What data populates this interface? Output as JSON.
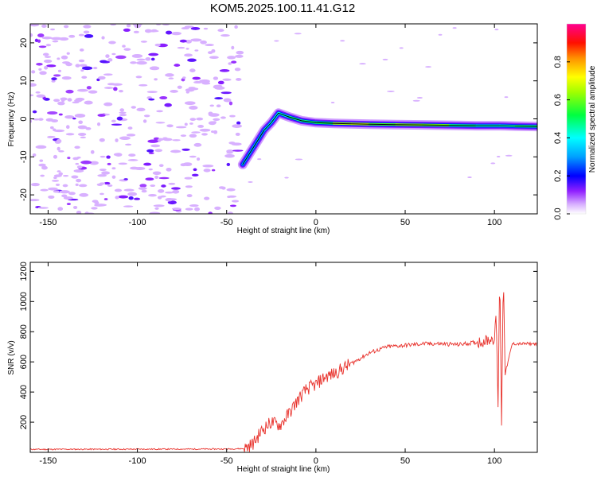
{
  "title": "KOM5.2025.100.11.41.G12",
  "chart_data": [
    {
      "type": "heatmap",
      "xlabel": "Height of straight line (km)",
      "ylabel": "Frequency (Hz)",
      "xlim": [
        -160,
        124
      ],
      "ylim": [
        -25,
        25
      ],
      "x_ticks": [
        -150,
        -100,
        -50,
        0,
        50,
        100
      ],
      "y_ticks": [
        -20,
        -10,
        0,
        10,
        20
      ],
      "x_tick_labels": [
        "-150",
        "-100",
        "-50",
        "0",
        "50",
        "100"
      ],
      "y_tick_labels": [
        "-20",
        "-10",
        "0",
        "10",
        "20"
      ],
      "colorbar": {
        "label": "Normalized spectral amplitude",
        "range": [
          0,
          1
        ],
        "ticks": [
          0.0,
          0.2,
          0.4,
          0.6,
          0.8
        ],
        "tick_labels": [
          "0.0",
          "0.2",
          "0.4",
          "0.6",
          "0.8"
        ],
        "colors": [
          "#ffffff",
          "#c080ff",
          "#8000ff",
          "#0000ff",
          "#00ffff",
          "#00ff00",
          "#ffff00",
          "#ff8000",
          "#ff0000",
          "#ff0080"
        ]
      },
      "signal_trace": [
        {
          "x": -41,
          "y": -12,
          "amp": 0.3
        },
        {
          "x": -37,
          "y": -9,
          "amp": 0.35
        },
        {
          "x": -33,
          "y": -6,
          "amp": 0.3
        },
        {
          "x": -29,
          "y": -3,
          "amp": 0.35
        },
        {
          "x": -25,
          "y": -1,
          "amp": 0.4
        },
        {
          "x": -21,
          "y": 1.5,
          "amp": 0.4
        },
        {
          "x": -15,
          "y": 0.5,
          "amp": 0.45
        },
        {
          "x": -8,
          "y": -0.5,
          "amp": 0.5
        },
        {
          "x": 0,
          "y": -1,
          "amp": 0.45
        },
        {
          "x": 10,
          "y": -1.2,
          "amp": 0.55
        },
        {
          "x": 20,
          "y": -1.3,
          "amp": 0.75
        },
        {
          "x": 30,
          "y": -1.4,
          "amp": 0.6
        },
        {
          "x": 45,
          "y": -1.5,
          "amp": 0.55
        },
        {
          "x": 60,
          "y": -1.6,
          "amp": 0.7
        },
        {
          "x": 75,
          "y": -1.7,
          "amp": 0.5
        },
        {
          "x": 90,
          "y": -1.8,
          "amp": 0.45
        },
        {
          "x": 103,
          "y": -1.8,
          "amp": 0.4
        },
        {
          "x": 112,
          "y": -1.9,
          "amp": 0.45
        },
        {
          "x": 124,
          "y": -2.0,
          "amp": 0.5
        }
      ]
    },
    {
      "type": "line",
      "xlabel": "Height of straight line (km)",
      "ylabel": "SNR (v/v)",
      "xlim": [
        -160,
        124
      ],
      "ylim": [
        0,
        1260
      ],
      "x_ticks": [
        -150,
        -100,
        -50,
        0,
        50,
        100
      ],
      "y_ticks": [
        200,
        400,
        600,
        800,
        1000,
        1200
      ],
      "x_tick_labels": [
        "-150",
        "-100",
        "-50",
        "0",
        "50",
        "100"
      ],
      "y_tick_labels": [
        "200",
        "400",
        "600",
        "800",
        "1000",
        "1200"
      ],
      "color": "#e8302a",
      "series": [
        {
          "x": [
            -160,
            -50,
            -40,
            -35,
            -30,
            -25,
            -20,
            -15,
            -10,
            -5,
            0,
            5,
            10,
            20,
            30,
            40,
            50,
            60,
            70,
            80,
            90,
            95,
            100,
            101,
            102,
            103,
            104,
            105,
            106,
            110,
            124
          ],
          "values": [
            20,
            22,
            25,
            60,
            150,
            200,
            180,
            260,
            350,
            420,
            450,
            500,
            520,
            590,
            660,
            700,
            710,
            720,
            720,
            715,
            730,
            740,
            760,
            900,
            300,
            1220,
            180,
            1200,
            520,
            720,
            720
          ]
        }
      ]
    }
  ]
}
